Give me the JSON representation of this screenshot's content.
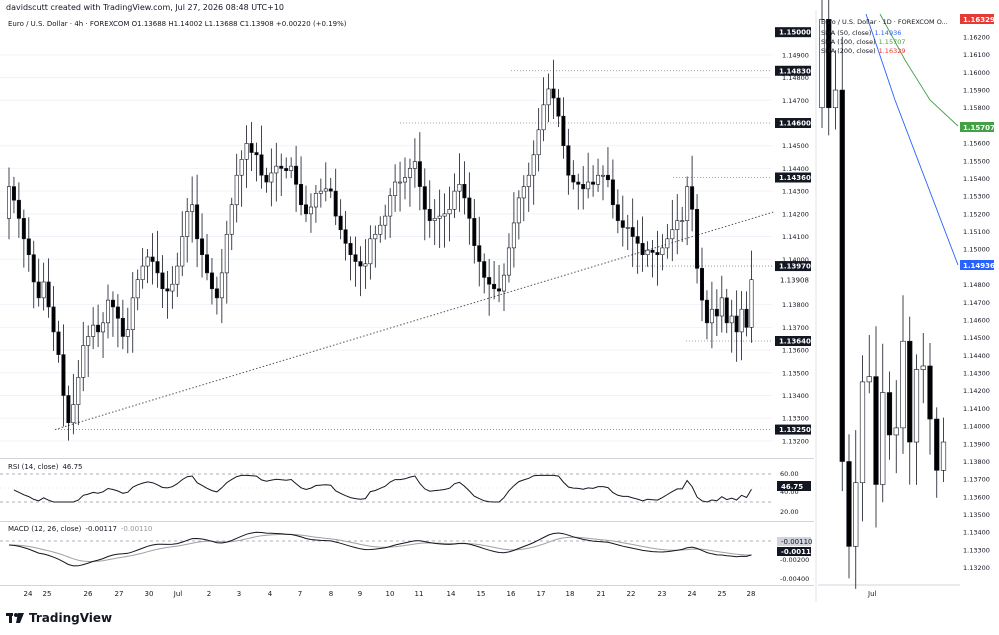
{
  "credit": "davidscutt created with TradingView.com, Jul 27, 2026 08:48 UTC+10",
  "brand": "TradingView",
  "colors": {
    "bull": "#ffffff",
    "bear": "#000000",
    "sma50": "#2962ff",
    "sma100": "#43a047",
    "sma200": "#e53935",
    "trendline": "#555555",
    "ref": "#888888"
  },
  "chart_data": [
    {
      "id": "main_4h",
      "type": "candlestick",
      "legend": "Euro / U.S. Dollar · 4h · FOREXCOM  O1.13688  H1.14002  L1.13688  C1.13908  +0.00220 (+0.19%)",
      "y_ticks": [
        "1.14900",
        "1.14800",
        "1.14700",
        "1.14500",
        "1.14400",
        "1.14300",
        "1.14200",
        "1.14100",
        "1.14000",
        "1.13800",
        "1.13700",
        "1.13600",
        "1.13500",
        "1.13400",
        "1.13300",
        "1.13200"
      ],
      "x_ticks": [
        "24",
        "25",
        "26",
        "27",
        "30",
        "Jul",
        "2",
        "3",
        "4",
        "7",
        "8",
        "9",
        "10",
        "11",
        "14",
        "15",
        "16",
        "17",
        "18",
        "21",
        "22",
        "23",
        "24",
        "25",
        "28"
      ],
      "price_labels": [
        {
          "text": "1.15000",
          "value": 1.15,
          "style": "dark"
        },
        {
          "text": "1.14830",
          "value": 1.1483,
          "style": "dark"
        },
        {
          "text": "1.14600",
          "value": 1.146,
          "style": "dark"
        },
        {
          "text": "1.14360",
          "value": 1.1436,
          "style": "dark"
        },
        {
          "text": "1.13970",
          "value": 1.1397,
          "style": "dark"
        },
        {
          "text": "1.13908",
          "value": 1.13908,
          "style": "plain"
        },
        {
          "text": "1.13640",
          "value": 1.1364,
          "style": "dark"
        },
        {
          "text": "1.13250",
          "value": 1.1325,
          "style": "dark"
        }
      ],
      "ylim": [
        1.1316,
        1.1508
      ],
      "closes": [
        1.1432,
        1.1426,
        1.1418,
        1.1409,
        1.1402,
        1.139,
        1.1383,
        1.139,
        1.1379,
        1.1368,
        1.1358,
        1.134,
        1.1328,
        1.1336,
        1.1348,
        1.1362,
        1.1366,
        1.1371,
        1.1368,
        1.1372,
        1.1382,
        1.1379,
        1.1374,
        1.1366,
        1.1369,
        1.1383,
        1.1391,
        1.1397,
        1.1401,
        1.1399,
        1.1394,
        1.1387,
        1.1386,
        1.1389,
        1.1397,
        1.141,
        1.1421,
        1.1424,
        1.1409,
        1.1402,
        1.1394,
        1.1387,
        1.1383,
        1.1394,
        1.1411,
        1.1424,
        1.1437,
        1.1444,
        1.1451,
        1.1447,
        1.1446,
        1.1437,
        1.1434,
        1.1438,
        1.1441,
        1.144,
        1.1439,
        1.1441,
        1.1433,
        1.1424,
        1.142,
        1.1423,
        1.1429,
        1.143,
        1.1431,
        1.143,
        1.1419,
        1.1413,
        1.1407,
        1.1402,
        1.1399,
        1.1397,
        1.1398,
        1.1409,
        1.1411,
        1.1415,
        1.1419,
        1.1428,
        1.1434,
        1.1434,
        1.1436,
        1.144,
        1.1443,
        1.1432,
        1.1422,
        1.1417,
        1.1418,
        1.1419,
        1.142,
        1.1422,
        1.143,
        1.1433,
        1.1427,
        1.1418,
        1.1406,
        1.1399,
        1.1392,
        1.1389,
        1.1387,
        1.1386,
        1.1393,
        1.1405,
        1.1416,
        1.1427,
        1.1432,
        1.1437,
        1.1446,
        1.1457,
        1.1468,
        1.1475,
        1.1471,
        1.1463,
        1.145,
        1.1437,
        1.1434,
        1.1433,
        1.1431,
        1.1434,
        1.1433,
        1.1437,
        1.1437,
        1.1435,
        1.1424,
        1.1417,
        1.1414,
        1.1414,
        1.141,
        1.1407,
        1.1402,
        1.1404,
        1.1403,
        1.1402,
        1.1405,
        1.1409,
        1.1413,
        1.1417,
        1.1417,
        1.1432,
        1.1422,
        1.1396,
        1.1382,
        1.1372,
        1.1378,
        1.1375,
        1.1383,
        1.1372,
        1.1375,
        1.1368,
        1.1378,
        1.137,
        1.1391
      ],
      "trendline": {
        "from": {
          "x": "24",
          "y": 1.1325
        },
        "to": {
          "x": "26",
          "y": 1.1421
        }
      },
      "panes": {
        "rsi": {
          "label": "RSI (14, close)",
          "value": "46.75",
          "levels": [
            "60.00",
            "40.00",
            "20.00"
          ],
          "ylim": [
            20,
            70
          ]
        },
        "macd": {
          "label": "MACD (12, 26, close)",
          "macd": "-0.00117",
          "signal": "-0.00110",
          "levels": [
            "-0.00200",
            "-0.00400"
          ],
          "ylim": [
            -0.0043,
            0.0008
          ]
        }
      }
    },
    {
      "id": "daily_1d",
      "type": "candlestick",
      "legend": "Euro / U.S. Dollar · 1D · FOREXCOM  O...",
      "x_ticks": [
        "Jul"
      ],
      "y_ticks": [
        "1.16200",
        "1.16100",
        "1.16000",
        "1.15900",
        "1.15800",
        "1.15600",
        "1.15500",
        "1.15400",
        "1.15300",
        "1.15200",
        "1.15100",
        "1.15000",
        "1.14800",
        "1.14700",
        "1.14600",
        "1.14500",
        "1.14400",
        "1.14300",
        "1.14200",
        "1.14100",
        "1.14000",
        "1.13900",
        "1.13800",
        "1.13700",
        "1.13600",
        "1.13500",
        "1.13400",
        "1.13300",
        "1.13200"
      ],
      "ylim": [
        1.1313,
        1.1633
      ],
      "series": [
        {
          "name": "SMA (50, close)",
          "value": "1.14936"
        },
        {
          "name": "SMA (100, close)",
          "value": "1.15707"
        },
        {
          "name": "SMA (200, close)",
          "value": "1.16329"
        }
      ],
      "sma_lines": {
        "SMA (50, close)": {
          "x": [
            0,
            19
          ],
          "y": [
            1.1618,
            1.14936
          ]
        },
        "SMA (100, close)": {
          "x": [
            0,
            19
          ],
          "y": [
            1.1635,
            1.15707
          ]
        }
      },
      "candles": [
        {
          "o": 1.158,
          "c": 1.163
        },
        {
          "o": 1.163,
          "c": 1.158
        },
        {
          "o": 1.158,
          "c": 1.159
        },
        {
          "o": 1.159,
          "c": 1.138
        },
        {
          "o": 1.138,
          "c": 1.1332
        },
        {
          "o": 1.1332,
          "c": 1.1368
        },
        {
          "o": 1.1368,
          "c": 1.1425
        },
        {
          "o": 1.1425,
          "c": 1.1428
        },
        {
          "o": 1.1428,
          "c": 1.1367
        },
        {
          "o": 1.1367,
          "c": 1.1419
        },
        {
          "o": 1.1419,
          "c": 1.1395
        },
        {
          "o": 1.1395,
          "c": 1.1399
        },
        {
          "o": 1.1399,
          "c": 1.1448
        },
        {
          "o": 1.1448,
          "c": 1.1391
        },
        {
          "o": 1.1391,
          "c": 1.1432
        },
        {
          "o": 1.1432,
          "c": 1.1434
        },
        {
          "o": 1.1434,
          "c": 1.1404
        },
        {
          "o": 1.1404,
          "c": 1.1375
        },
        {
          "o": 1.1375,
          "c": 1.1391
        }
      ]
    }
  ]
}
